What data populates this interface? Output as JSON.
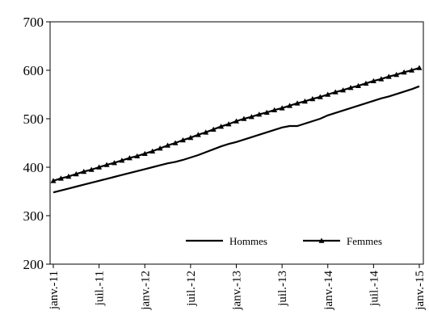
{
  "chart_data": {
    "type": "line",
    "categories": [
      "janv.-11",
      null,
      null,
      null,
      null,
      null,
      "juil.-11",
      null,
      null,
      null,
      null,
      null,
      "janv.-12",
      null,
      null,
      null,
      null,
      null,
      "juil.-12",
      null,
      null,
      null,
      null,
      null,
      "janv.-13",
      null,
      null,
      null,
      null,
      null,
      "juil.-13",
      null,
      null,
      null,
      null,
      null,
      "janv.-14",
      null,
      null,
      null,
      null,
      null,
      "juil.-14",
      null,
      null,
      null,
      null,
      null,
      "janv.-15"
    ],
    "series": [
      {
        "name": "Hommes",
        "color": "#000000",
        "marker": "none",
        "values": [
          348,
          352,
          356,
          360,
          364,
          368,
          372,
          376,
          380,
          384,
          388,
          392,
          396,
          400,
          404,
          408,
          411,
          415,
          420,
          425,
          431,
          437,
          443,
          448,
          452,
          457,
          462,
          467,
          472,
          477,
          482,
          485,
          485,
          490,
          495,
          500,
          507,
          512,
          517,
          522,
          527,
          532,
          537,
          542,
          546,
          551,
          556,
          561,
          567
        ]
      },
      {
        "name": "Femmes",
        "color": "#000000",
        "marker": "triangle",
        "values": [
          372,
          377,
          381,
          386,
          391,
          395,
          400,
          405,
          409,
          414,
          419,
          423,
          428,
          433,
          439,
          445,
          450,
          456,
          461,
          467,
          472,
          478,
          484,
          489,
          495,
          500,
          504,
          509,
          513,
          518,
          522,
          527,
          532,
          536,
          541,
          545,
          550,
          555,
          559,
          564,
          568,
          573,
          578,
          582,
          587,
          591,
          596,
          600,
          605
        ]
      }
    ],
    "ylim": [
      200,
      700
    ],
    "yticks": [
      200,
      300,
      400,
      500,
      600,
      700
    ],
    "grid": false,
    "legend": "bottom"
  }
}
